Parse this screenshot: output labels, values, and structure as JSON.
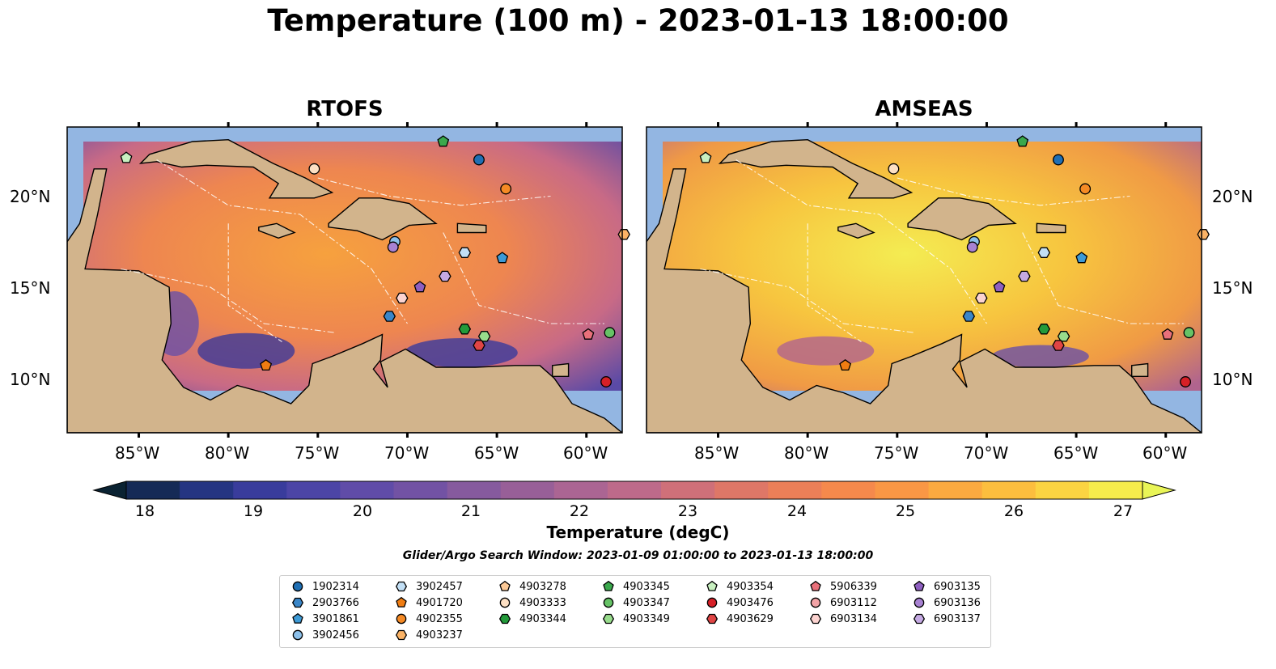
{
  "title": "Temperature (100 m) - 2023-01-13 18:00:00",
  "panels": [
    {
      "title": "RTOFS"
    },
    {
      "title": "AMSEAS"
    }
  ],
  "axes": {
    "lon_ticks": [
      "85°W",
      "80°W",
      "75°W",
      "70°W",
      "65°W",
      "60°W"
    ],
    "lat_ticks": [
      "20°N",
      "15°N",
      "10°N"
    ],
    "extent": {
      "lon_min": -89,
      "lon_max": -58,
      "lat_min": 7,
      "lat_max": 23.8
    }
  },
  "colorbar": {
    "ticks": [
      "18",
      "19",
      "20",
      "21",
      "22",
      "23",
      "24",
      "25",
      "26",
      "27"
    ],
    "label": "Temperature (degC)",
    "range": [
      18,
      27
    ],
    "colors": [
      "#0a2232",
      "#152a56",
      "#253582",
      "#393c9c",
      "#4c45a6",
      "#604ca8",
      "#7252a4",
      "#865a9e",
      "#985f98",
      "#ab6593",
      "#bd6a8a",
      "#cf7079",
      "#de7767",
      "#eb7f58",
      "#f5894c",
      "#f99745",
      "#fbaa40",
      "#fcbe3e",
      "#fbd442",
      "#f6ec4c",
      "#e9f557"
    ]
  },
  "search_window": "Glider/Argo Search Window: 2023-01-09 01:00:00 to 2023-01-13 18:00:00",
  "legend": [
    {
      "label": "1902314",
      "marker": "circle",
      "color": "#1f6fb4"
    },
    {
      "label": "2903766",
      "marker": "hexagon",
      "color": "#3a86c8"
    },
    {
      "label": "3901861",
      "marker": "pentagon",
      "color": "#3d9ad6"
    },
    {
      "label": "3902456",
      "marker": "circle",
      "color": "#8cc0ea"
    },
    {
      "label": "3902457",
      "marker": "hexagon",
      "color": "#c2dff5"
    },
    {
      "label": "4901720",
      "marker": "pentagon",
      "color": "#f07d12"
    },
    {
      "label": "4902355",
      "marker": "circle",
      "color": "#f58a25"
    },
    {
      "label": "4903237",
      "marker": "hexagon",
      "color": "#fbb366"
    },
    {
      "label": "4903278",
      "marker": "pentagon",
      "color": "#fbc896"
    },
    {
      "label": "4903333",
      "marker": "circle",
      "color": "#fde0c4"
    },
    {
      "label": "4903344",
      "marker": "hexagon",
      "color": "#239a3a"
    },
    {
      "label": "4903345",
      "marker": "pentagon",
      "color": "#3aa84c"
    },
    {
      "label": "4903347",
      "marker": "circle",
      "color": "#66c266"
    },
    {
      "label": "4903349",
      "marker": "hexagon",
      "color": "#98dc8c"
    },
    {
      "label": "4903354",
      "marker": "pentagon",
      "color": "#c8f0c0"
    },
    {
      "label": "4903476",
      "marker": "circle",
      "color": "#d62027"
    },
    {
      "label": "4903629",
      "marker": "hexagon",
      "color": "#e04545"
    },
    {
      "label": "5906339",
      "marker": "pentagon",
      "color": "#e8707a"
    },
    {
      "label": "6903112",
      "marker": "circle",
      "color": "#f2a3a6"
    },
    {
      "label": "6903134",
      "marker": "hexagon",
      "color": "#fcd3d0"
    },
    {
      "label": "6903135",
      "marker": "pentagon",
      "color": "#8e5fc0"
    },
    {
      "label": "6903136",
      "marker": "circle",
      "color": "#a882d2"
    },
    {
      "label": "6903137",
      "marker": "hexagon",
      "color": "#c5aae3"
    }
  ],
  "platforms": [
    {
      "id": "4903354",
      "lon": -85.7,
      "lat": 22.1
    },
    {
      "id": "4903345",
      "lon": -68.0,
      "lat": 23.0
    },
    {
      "id": "1902314",
      "lon": -66.0,
      "lat": 22.0
    },
    {
      "id": "4903333",
      "lon": -75.2,
      "lat": 21.5
    },
    {
      "id": "4902355",
      "lon": -64.5,
      "lat": 20.4
    },
    {
      "id": "3902456",
      "lon": -70.7,
      "lat": 17.5
    },
    {
      "id": "6903136",
      "lon": -70.8,
      "lat": 17.2
    },
    {
      "id": "3902457",
      "lon": -66.8,
      "lat": 16.9
    },
    {
      "id": "3901861",
      "lon": -64.7,
      "lat": 16.6
    },
    {
      "id": "6903137",
      "lon": -67.9,
      "lat": 15.6
    },
    {
      "id": "6903135",
      "lon": -69.3,
      "lat": 15.0
    },
    {
      "id": "6903134",
      "lon": -70.3,
      "lat": 14.4
    },
    {
      "id": "2903766",
      "lon": -71.0,
      "lat": 13.4
    },
    {
      "id": "4903344",
      "lon": -66.8,
      "lat": 12.7
    },
    {
      "id": "4903349",
      "lon": -65.7,
      "lat": 12.3
    },
    {
      "id": "4903629",
      "lon": -66.0,
      "lat": 11.8
    },
    {
      "id": "5906339",
      "lon": -59.9,
      "lat": 12.4
    },
    {
      "id": "4903347",
      "lon": -58.7,
      "lat": 12.5
    },
    {
      "id": "4901720",
      "lon": -77.9,
      "lat": 10.7
    },
    {
      "id": "4903476",
      "lon": -58.9,
      "lat": 9.8
    },
    {
      "id": "4903237",
      "lon": -57.9,
      "lat": 17.9
    }
  ]
}
